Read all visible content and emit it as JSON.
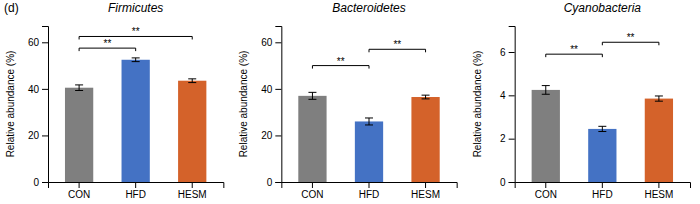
{
  "panel_label": "(d)",
  "chart_data": [
    {
      "type": "bar",
      "title": "Firmicutes",
      "ylabel": "Relative abundance (%)",
      "categories": [
        "CON",
        "HFD",
        "HESM"
      ],
      "values": [
        40.5,
        52.5,
        43.5
      ],
      "errors": [
        1.2,
        0.8,
        0.8
      ],
      "colors": [
        "#7f7f7f",
        "#4472c4",
        "#d4622a"
      ],
      "ylim": [
        0,
        67
      ],
      "yticks": [
        0,
        20,
        40,
        60
      ],
      "grid": false,
      "annotations": [
        {
          "type": "bracket",
          "from": "CON",
          "to": "HFD",
          "y": 57.5,
          "text": "**"
        },
        {
          "type": "bracket",
          "from": "CON",
          "to": "HESM",
          "y": 62.5,
          "text": "**"
        }
      ]
    },
    {
      "type": "bar",
      "title": "Bacteroidetes",
      "ylabel": "Relative abundance (%)",
      "categories": [
        "CON",
        "HFD",
        "HESM"
      ],
      "values": [
        37.0,
        26.0,
        36.5
      ],
      "errors": [
        1.5,
        1.5,
        0.8
      ],
      "colors": [
        "#7f7f7f",
        "#4472c4",
        "#d4622a"
      ],
      "ylim": [
        0,
        67
      ],
      "yticks": [
        0,
        20,
        40,
        60
      ],
      "grid": false,
      "annotations": [
        {
          "type": "bracket",
          "from": "CON",
          "to": "HFD",
          "y": 50.0,
          "text": "**"
        },
        {
          "type": "bracket",
          "from": "HFD",
          "to": "HESM",
          "y": 57.0,
          "text": "**"
        }
      ]
    },
    {
      "type": "bar",
      "title": "Cyanobacteria",
      "ylabel": "Relative abundance (%)",
      "categories": [
        "CON",
        "HFD",
        "HESM"
      ],
      "values": [
        4.25,
        2.45,
        3.85
      ],
      "errors": [
        0.2,
        0.12,
        0.12
      ],
      "colors": [
        "#7f7f7f",
        "#4472c4",
        "#d4622a"
      ],
      "ylim": [
        0,
        7.2
      ],
      "yticks": [
        0,
        2,
        4,
        6
      ],
      "grid": false,
      "annotations": [
        {
          "type": "bracket",
          "from": "CON",
          "to": "HFD",
          "y": 5.9,
          "text": "**"
        },
        {
          "type": "bracket",
          "from": "HFD",
          "to": "HESM",
          "y": 6.45,
          "text": "**"
        }
      ]
    }
  ]
}
